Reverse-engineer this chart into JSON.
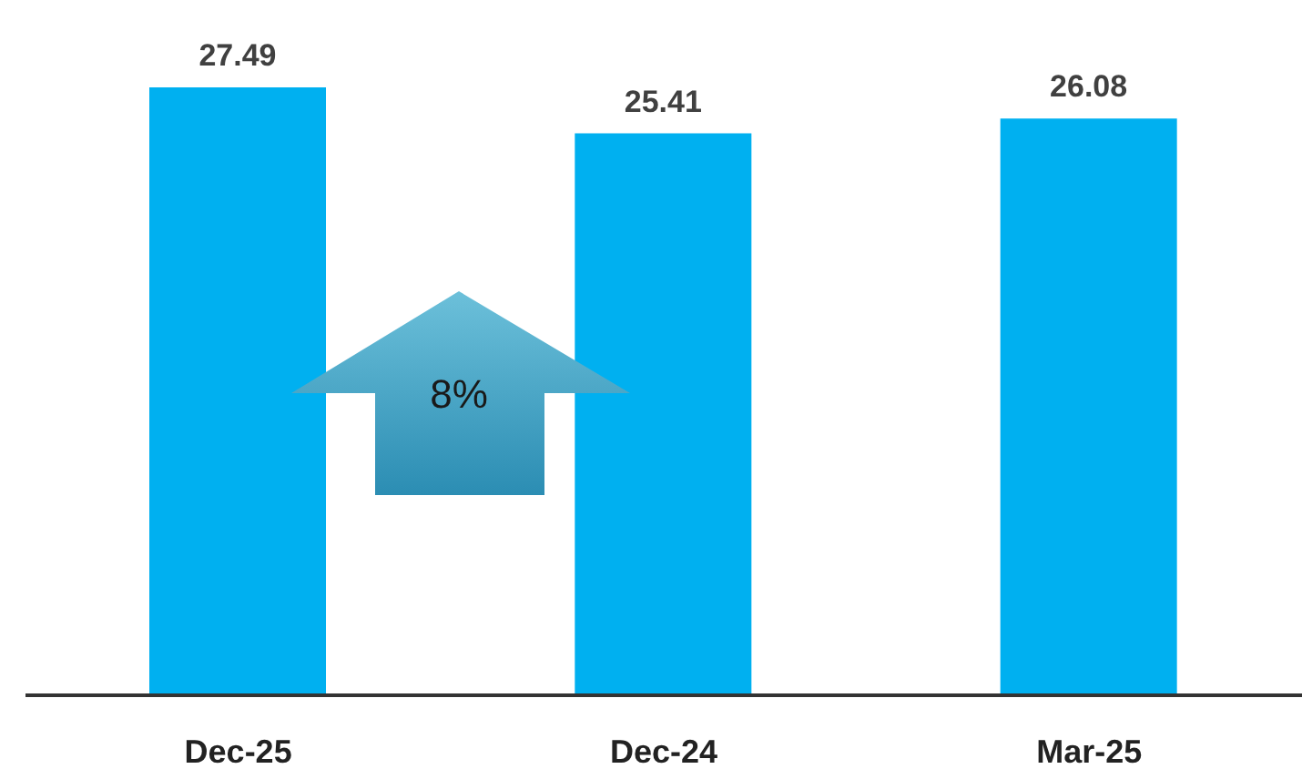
{
  "chart_data": {
    "type": "bar",
    "categories": [
      "Dec-25",
      "Dec-24",
      "Mar-25"
    ],
    "values": [
      27.49,
      25.41,
      26.08
    ],
    "color": "#00b0f0",
    "data_labels": true,
    "annotations": [
      "8%"
    ]
  }
}
